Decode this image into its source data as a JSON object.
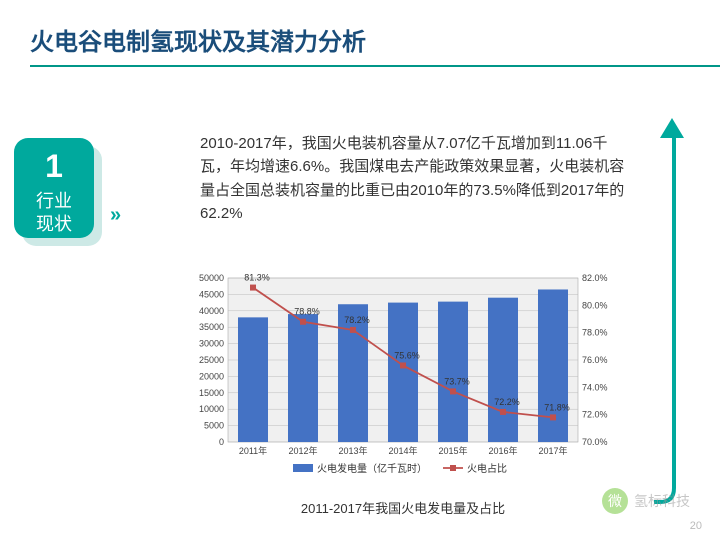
{
  "title": "火电谷电制氢现状及其潜力分析",
  "badge": {
    "number": "1",
    "label": "行业\n现状"
  },
  "chevrons": "»",
  "description": "2010-2017年，我国火电装机容量从7.07亿千瓦增加到11.06千瓦，年均增速6.6%。我国煤电去产能政策效果显著，火电装机容量占全国总装机容量的比重已由2010年的73.5%降低到2017年的62.2%",
  "chart": {
    "type": "bar+line",
    "categories": [
      "2011年",
      "2012年",
      "2013年",
      "2014年",
      "2015年",
      "2016年",
      "2017年"
    ],
    "bar_series": {
      "label": "火电发电量（亿千瓦时）",
      "values": [
        38000,
        39000,
        42000,
        42500,
        42800,
        44000,
        46500
      ],
      "color": "#4472c4"
    },
    "line_series": {
      "label": "火电占比",
      "values": [
        81.3,
        78.8,
        78.2,
        75.6,
        73.7,
        72.2,
        71.8
      ],
      "point_labels": [
        "81.3%",
        "78.8%",
        "78.2%",
        "75.6%",
        "73.7%",
        "72.2%",
        "71.8%"
      ],
      "color": "#c0504d"
    },
    "y_left": {
      "min": 0,
      "max": 50000,
      "step": 5000
    },
    "y_right": {
      "min": 70.0,
      "max": 82.0,
      "step": 2.0,
      "format_pct": true
    },
    "plot_bg": "#f0f0f0",
    "grid_color": "#bbbbbb",
    "font_size_axis": 9,
    "bar_width_ratio": 0.6
  },
  "chart_caption": "2011-2017年我国火电发电量及占比",
  "arrow_color": "#00a99d",
  "page_number": "20",
  "watermark": {
    "icon_text": "微",
    "text": "氢标科技"
  }
}
